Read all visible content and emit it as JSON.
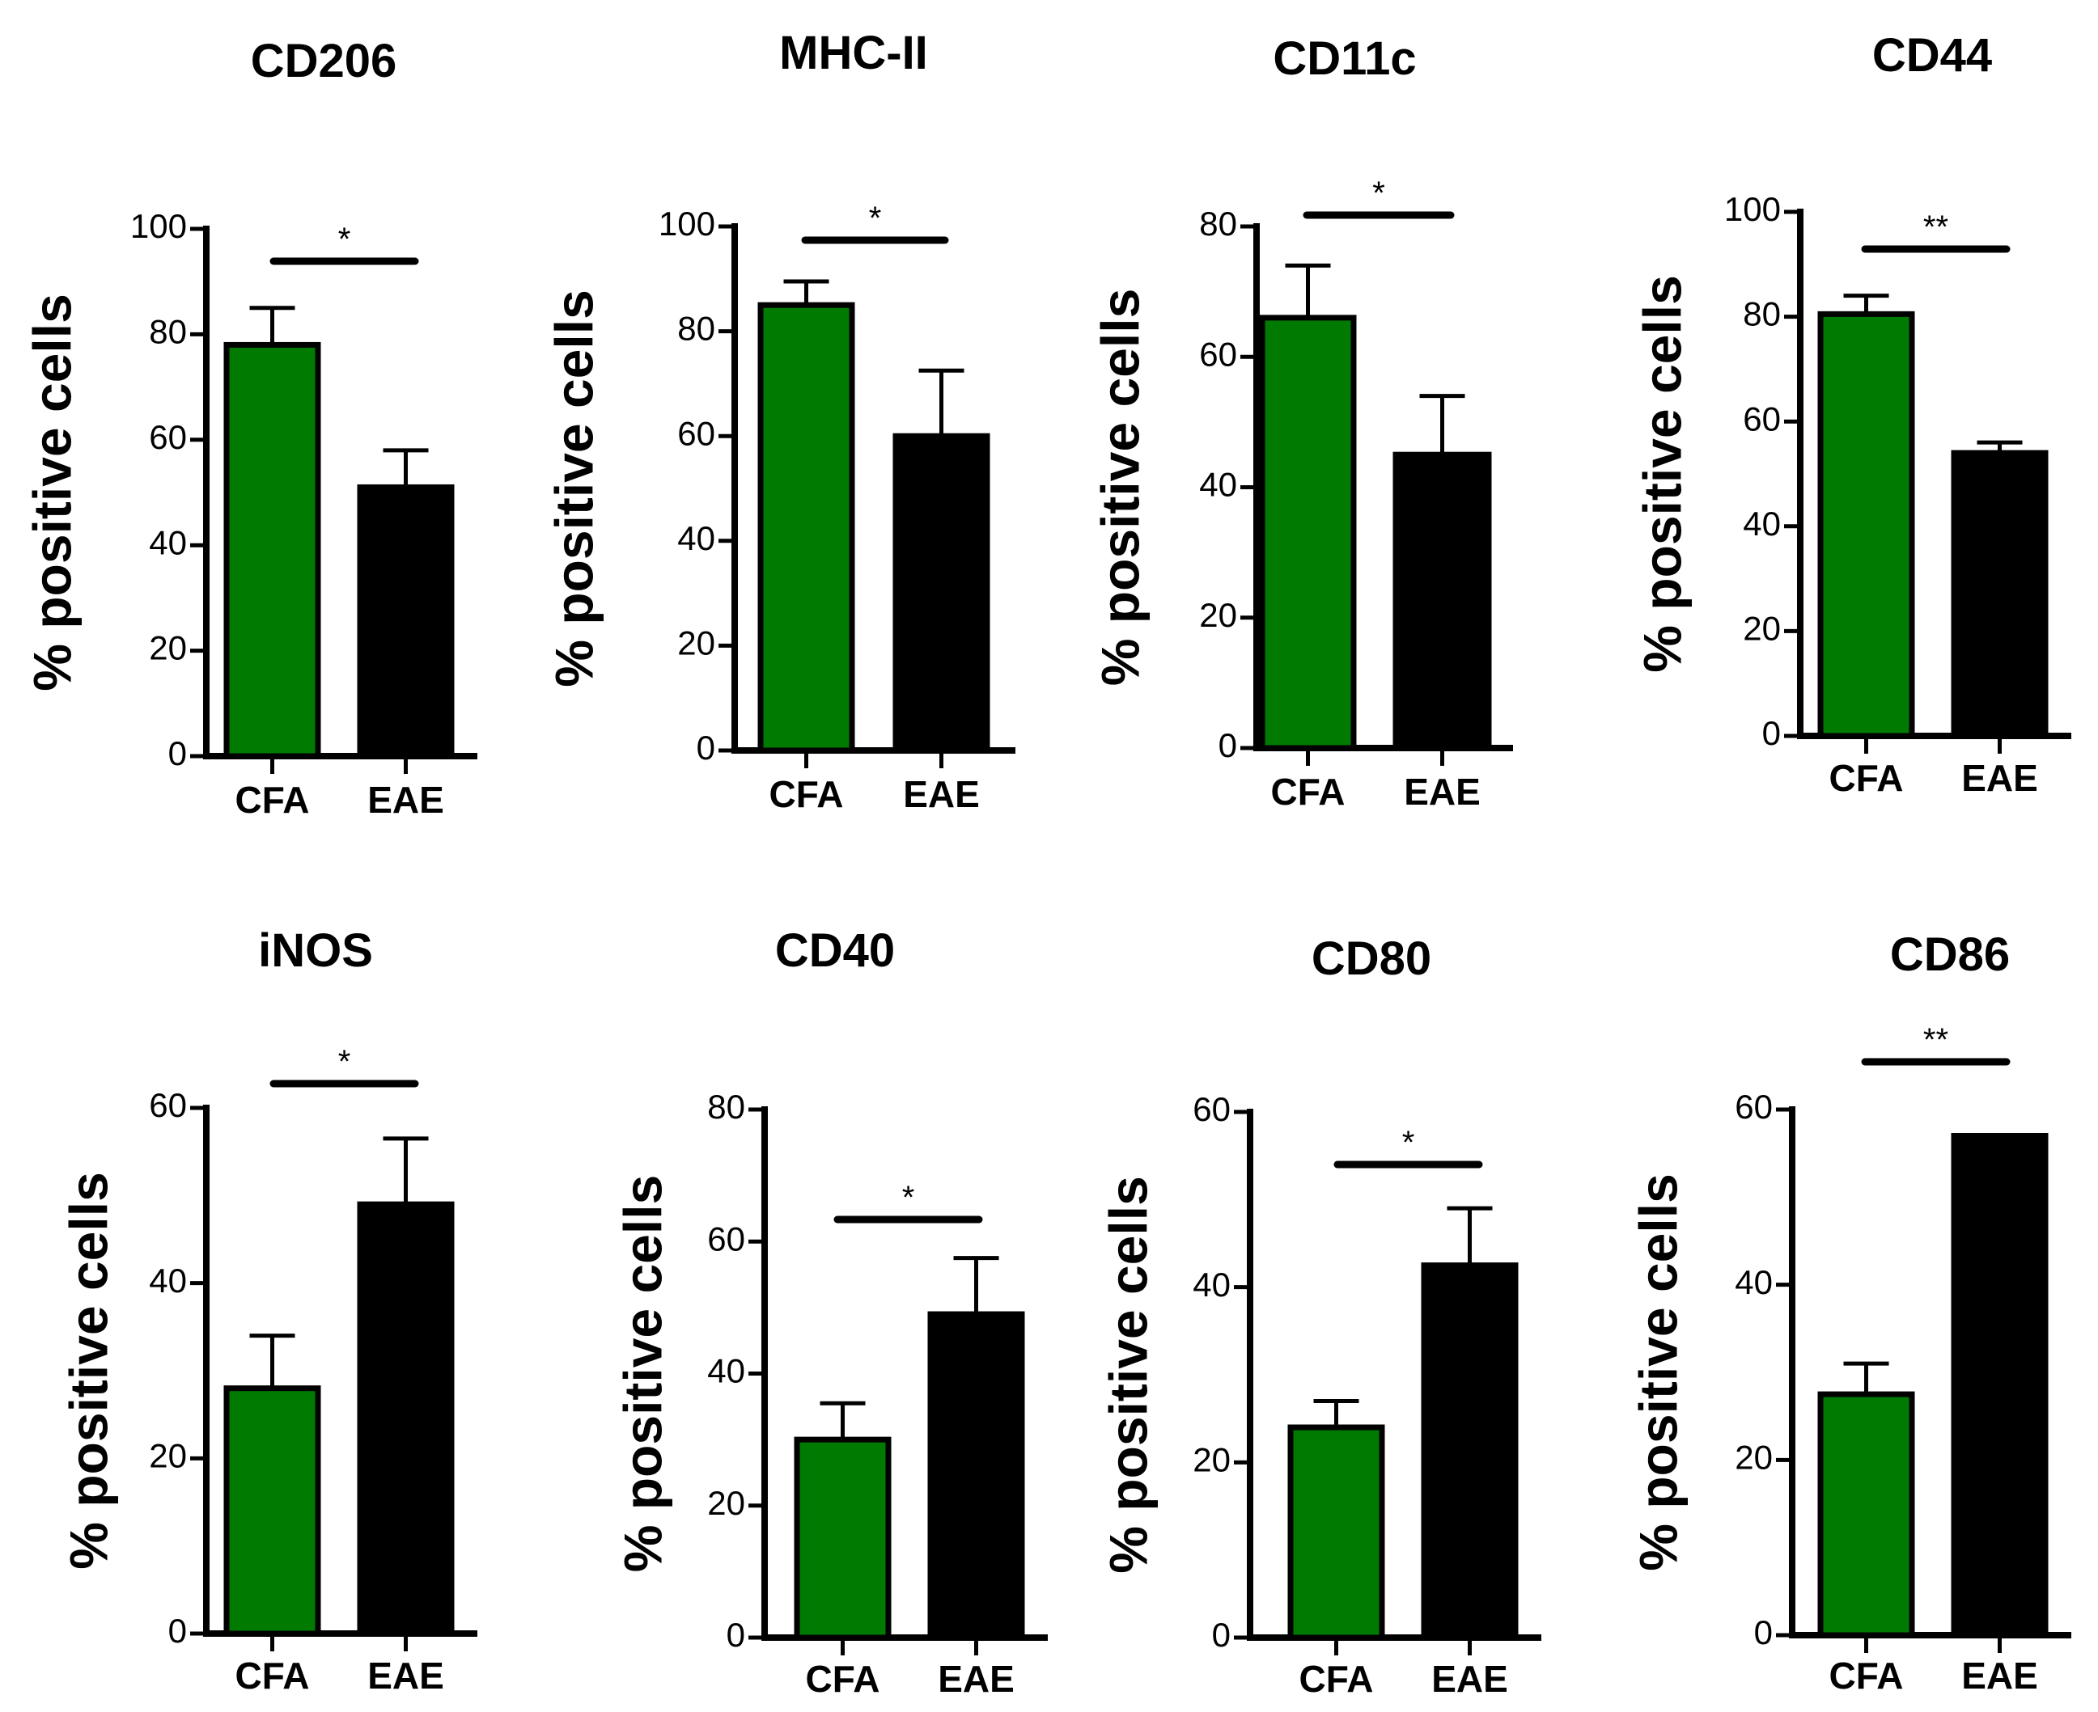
{
  "colors": {
    "CFA": "#007a00",
    "EAE": "#000000",
    "axis": "#000000"
  },
  "chart_data": [
    {
      "type": "bar",
      "title": "CD206",
      "ylabel": "% positive cells",
      "ylim": [
        0,
        100
      ],
      "yticks": [
        "0",
        "20",
        "40",
        "60",
        "80",
        "100"
      ],
      "categories": [
        "CFA",
        "EAE"
      ],
      "values": [
        78,
        51
      ],
      "errors": [
        7,
        7
      ],
      "significance": "*"
    },
    {
      "type": "bar",
      "title": "MHC-II",
      "ylabel": "% positive cells",
      "ylim": [
        0,
        100
      ],
      "yticks": [
        "0",
        "20",
        "40",
        "60",
        "80",
        "100"
      ],
      "categories": [
        "CFA",
        "EAE"
      ],
      "values": [
        85,
        60
      ],
      "errors": [
        4.5,
        12.5
      ],
      "significance": "*"
    },
    {
      "type": "bar",
      "title": "CD11c",
      "ylabel": "% positive cells",
      "ylim": [
        0,
        80
      ],
      "yticks": [
        "0",
        "20",
        "40",
        "60",
        "80"
      ],
      "categories": [
        "CFA",
        "EAE"
      ],
      "values": [
        66,
        45
      ],
      "errors": [
        8,
        9
      ],
      "significance": "*"
    },
    {
      "type": "bar",
      "title": "CD44",
      "ylabel": "% positive cells",
      "ylim": [
        0,
        100
      ],
      "yticks": [
        "0",
        "20",
        "40",
        "60",
        "80",
        "100"
      ],
      "categories": [
        "CFA",
        "EAE"
      ],
      "values": [
        80.5,
        54
      ],
      "errors": [
        3.5,
        2
      ],
      "significance": "**"
    },
    {
      "type": "bar",
      "title": "iNOS",
      "ylabel": "% positive cells",
      "ylim": [
        0,
        60
      ],
      "yticks": [
        "0",
        "20",
        "40",
        "60"
      ],
      "categories": [
        "CFA",
        "EAE"
      ],
      "values": [
        28,
        49
      ],
      "errors": [
        6,
        7.5
      ],
      "significance": "*"
    },
    {
      "type": "bar",
      "title": "CD40",
      "ylabel": "% positive cells",
      "ylim": [
        0,
        80
      ],
      "yticks": [
        "0",
        "20",
        "40",
        "60",
        "80"
      ],
      "categories": [
        "CFA",
        "EAE"
      ],
      "values": [
        30,
        49
      ],
      "errors": [
        5.5,
        8.5
      ],
      "significance": "*"
    },
    {
      "type": "bar",
      "title": "CD80",
      "ylabel": "% positive cells",
      "ylim": [
        0,
        60
      ],
      "yticks": [
        "0",
        "20",
        "40",
        "60"
      ],
      "categories": [
        "CFA",
        "EAE"
      ],
      "values": [
        24,
        42.5
      ],
      "errors": [
        3,
        6.5
      ],
      "significance": "*"
    },
    {
      "type": "bar",
      "title": "CD86",
      "ylabel": "% positive cells",
      "ylim": [
        0,
        60
      ],
      "yticks": [
        "0",
        "20",
        "40",
        "60"
      ],
      "categories": [
        "CFA",
        "EAE"
      ],
      "values": [
        27.5,
        57
      ],
      "errors": [
        3.5,
        0
      ],
      "significance": "**"
    }
  ]
}
